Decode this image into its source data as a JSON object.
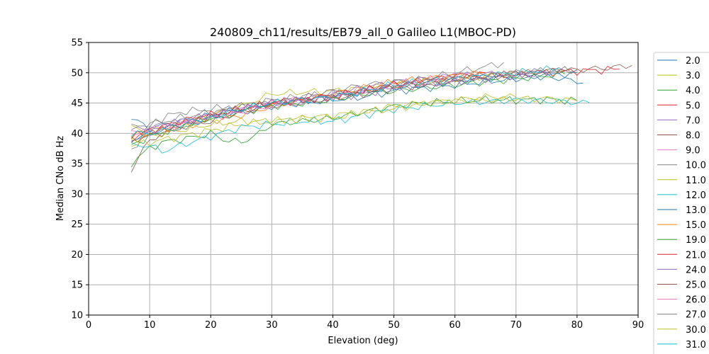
{
  "chart_data": {
    "type": "line",
    "title": "240809_ch11/results/EB79_all_0 Galileo L1(MBOC-PD)",
    "xlabel": "Elevation (deg)",
    "ylabel": "Median CNo dB Hz",
    "xlim": [
      0,
      90
    ],
    "ylim": [
      10,
      55
    ],
    "xticks": [
      "0",
      "10",
      "20",
      "30",
      "40",
      "50",
      "60",
      "70",
      "80",
      "90"
    ],
    "yticks": [
      "10",
      "15",
      "20",
      "25",
      "30",
      "35",
      "40",
      "45",
      "50",
      "55"
    ],
    "grid": true,
    "legend_position": "right, outside plot (clipped)",
    "series": [
      {
        "name": "2.0",
        "color": "#1f77b4",
        "x": [
          7,
          10,
          15,
          20,
          25,
          30,
          35,
          40,
          45,
          50,
          55,
          60,
          65,
          70,
          75,
          80,
          81
        ],
        "y": [
          42.5,
          40.8,
          42.0,
          43.0,
          44.0,
          45.0,
          45.5,
          46.0,
          46.8,
          47.5,
          48.0,
          48.5,
          49.0,
          49.3,
          49.5,
          48.5,
          48.3
        ]
      },
      {
        "name": "3.0",
        "color": "#bcbd22",
        "x": [
          7,
          10,
          15,
          20,
          25,
          30,
          35,
          40,
          45,
          50,
          55,
          60,
          65,
          70
        ],
        "y": [
          41.0,
          40.5,
          41.5,
          43.0,
          44.5,
          46.5,
          46.8,
          47.0,
          47.5,
          48.0,
          48.5,
          49.0,
          49.5,
          50.0
        ]
      },
      {
        "name": "4.0",
        "color": "#2ca02c",
        "x": [
          7,
          8,
          10,
          12,
          15,
          18,
          20,
          22,
          25,
          28,
          30,
          35,
          40,
          45,
          50,
          55,
          60,
          65,
          70,
          75,
          80
        ],
        "y": [
          35.0,
          36.0,
          37.5,
          38.5,
          39.0,
          39.5,
          40.0,
          39.0,
          38.5,
          40.0,
          41.5,
          42.0,
          42.5,
          43.5,
          44.5,
          45.0,
          45.3,
          45.5,
          45.5,
          45.6,
          45.4
        ]
      },
      {
        "name": "5.0",
        "color": "#d62728",
        "x": [
          7,
          10,
          15,
          20,
          25,
          30,
          35,
          40,
          45,
          50,
          55,
          60,
          65,
          70,
          75,
          80,
          85,
          87
        ],
        "y": [
          39.5,
          40.0,
          41.5,
          43.0,
          44.0,
          45.0,
          45.5,
          46.0,
          47.0,
          47.8,
          48.3,
          48.8,
          49.2,
          49.6,
          50.0,
          50.3,
          50.5,
          50.6
        ]
      },
      {
        "name": "7.0",
        "color": "#9467bd",
        "x": [
          7,
          10,
          15,
          20,
          25,
          30,
          35,
          40,
          45,
          50,
          55,
          60,
          65,
          70,
          75,
          78
        ],
        "y": [
          38.5,
          40.5,
          42.0,
          43.0,
          44.0,
          45.0,
          45.8,
          46.5,
          47.5,
          48.5,
          49.0,
          49.5,
          49.8,
          50.0,
          50.3,
          50.3
        ]
      },
      {
        "name": "8.0",
        "color": "#8c564b",
        "x": [
          7,
          10,
          15,
          20,
          25,
          30,
          35,
          40,
          45,
          50,
          55,
          60,
          65,
          70,
          75,
          80,
          85,
          89
        ],
        "y": [
          34.0,
          39.0,
          41.0,
          42.5,
          44.0,
          45.0,
          45.5,
          46.0,
          47.0,
          48.0,
          48.5,
          49.0,
          49.5,
          49.8,
          50.3,
          50.5,
          50.8,
          51.2
        ]
      },
      {
        "name": "9.0",
        "color": "#e377c2",
        "x": [
          7,
          10,
          15,
          20,
          25,
          30,
          35,
          40,
          45,
          50,
          55,
          60,
          63
        ],
        "y": [
          40.0,
          40.5,
          41.5,
          43.0,
          44.0,
          45.0,
          45.8,
          46.5,
          47.3,
          48.0,
          48.8,
          49.5,
          49.8
        ]
      },
      {
        "name": "10.0",
        "color": "#7f7f7f",
        "x": [
          7,
          10,
          12,
          15,
          20,
          25,
          30,
          35,
          40,
          45,
          50,
          55,
          60,
          65,
          68
        ],
        "y": [
          37.0,
          41.5,
          42.5,
          43.5,
          44.0,
          44.5,
          45.0,
          46.0,
          47.0,
          48.0,
          48.5,
          49.0,
          50.0,
          51.0,
          51.7
        ]
      },
      {
        "name": "11.0",
        "color": "#bcbd22",
        "x": [
          7,
          10,
          15,
          20,
          25,
          30,
          35,
          40,
          45,
          50,
          55,
          60,
          65,
          70,
          75,
          80
        ],
        "y": [
          38.0,
          38.5,
          39.5,
          40.5,
          41.5,
          42.0,
          42.5,
          43.0,
          43.5,
          44.5,
          45.0,
          45.3,
          45.5,
          45.7,
          45.8,
          45.4
        ]
      },
      {
        "name": "12.0",
        "color": "#17becf",
        "x": [
          7,
          10,
          12,
          15,
          20,
          25,
          30,
          35,
          40,
          45,
          50,
          55,
          60,
          65,
          70,
          75,
          80,
          82
        ],
        "y": [
          38.0,
          38.0,
          37.0,
          38.0,
          39.5,
          41.0,
          41.5,
          42.0,
          42.0,
          43.0,
          44.0,
          44.5,
          45.0,
          45.2,
          45.5,
          45.3,
          45.1,
          45.1
        ]
      },
      {
        "name": "13.0",
        "color": "#1f77b4",
        "x": [
          7,
          10,
          15,
          20,
          25,
          30,
          35,
          40,
          45,
          50,
          55,
          60,
          65,
          70,
          75,
          80
        ],
        "y": [
          39.0,
          40.0,
          41.5,
          42.5,
          43.5,
          44.5,
          45.0,
          45.5,
          46.0,
          47.0,
          47.5,
          48.0,
          48.5,
          49.0,
          49.5,
          50.0
        ]
      },
      {
        "name": "15.0",
        "color": "#ff7f0e",
        "x": [
          7,
          10,
          15,
          20,
          25,
          30,
          35,
          40,
          45,
          50,
          55,
          60,
          65
        ],
        "y": [
          39.5,
          40.0,
          41.0,
          42.0,
          43.0,
          44.5,
          45.5,
          46.5,
          47.5,
          48.5,
          49.0,
          49.5,
          50.0
        ]
      },
      {
        "name": "19.0",
        "color": "#2ca02c",
        "x": [
          7,
          10,
          15,
          20,
          25,
          30,
          35,
          40,
          45,
          50,
          55,
          60,
          65,
          70,
          75,
          78
        ],
        "y": [
          38.0,
          39.5,
          41.0,
          42.5,
          43.5,
          44.5,
          45.0,
          45.5,
          46.5,
          47.0,
          47.5,
          48.0,
          48.5,
          49.0,
          49.5,
          49.8
        ]
      },
      {
        "name": "21.0",
        "color": "#d62728",
        "x": [
          7,
          10,
          15,
          20,
          25,
          30,
          35,
          40,
          45,
          50,
          55,
          60,
          65
        ],
        "y": [
          39.0,
          40.5,
          42.0,
          43.0,
          44.0,
          45.0,
          45.5,
          46.3,
          47.0,
          48.0,
          48.8,
          49.5,
          50.0
        ]
      },
      {
        "name": "24.0",
        "color": "#9467bd",
        "x": [
          7,
          10,
          15,
          20,
          25,
          30,
          35,
          40,
          45,
          50,
          55,
          60,
          65,
          70,
          75
        ],
        "y": [
          40.5,
          41.0,
          42.0,
          43.0,
          44.0,
          45.0,
          45.5,
          46.0,
          46.5,
          47.5,
          48.0,
          48.5,
          49.0,
          49.5,
          50.0
        ]
      },
      {
        "name": "25.0",
        "color": "#8c564b",
        "x": [
          7,
          10,
          15,
          20,
          25,
          30,
          35,
          40,
          45,
          50,
          55,
          60,
          65,
          70,
          75,
          80
        ],
        "y": [
          39.0,
          39.5,
          41.0,
          42.0,
          43.5,
          44.5,
          45.0,
          45.8,
          46.5,
          47.5,
          48.0,
          48.8,
          49.3,
          49.8,
          50.3,
          50.5
        ]
      },
      {
        "name": "26.0",
        "color": "#e377c2",
        "x": [
          7,
          10,
          15,
          20,
          25,
          30,
          35,
          40,
          45,
          50,
          55,
          60
        ],
        "y": [
          40.0,
          40.0,
          41.5,
          42.5,
          43.5,
          44.5,
          45.5,
          46.0,
          47.0,
          48.0,
          48.5,
          49.0
        ]
      },
      {
        "name": "27.0",
        "color": "#7f7f7f",
        "x": [
          7,
          10,
          15,
          20,
          25,
          30,
          35,
          40,
          45,
          50,
          55,
          60,
          65,
          70,
          75,
          80
        ],
        "y": [
          41.0,
          41.5,
          42.5,
          43.5,
          44.5,
          45.5,
          46.0,
          46.5,
          47.0,
          48.0,
          48.5,
          49.0,
          49.5,
          50.0,
          50.3,
          50.5
        ]
      },
      {
        "name": "30.0",
        "color": "#bcbd22",
        "x": [
          7,
          10,
          15,
          20,
          25,
          30,
          35,
          40,
          45,
          50,
          55,
          60,
          65,
          70
        ],
        "y": [
          39.0,
          39.5,
          40.5,
          41.5,
          42.0,
          42.0,
          42.5,
          42.5,
          43.5,
          44.0,
          45.0,
          45.5,
          46.0,
          46.0
        ]
      },
      {
        "name": "31.0",
        "color": "#17becf",
        "x": [
          7,
          10,
          15,
          20,
          25,
          30,
          35,
          40,
          45,
          50,
          55,
          60,
          65,
          70,
          75,
          77
        ],
        "y": [
          40.0,
          40.0,
          41.0,
          42.5,
          44.0,
          45.0,
          45.5,
          46.0,
          47.0,
          48.0,
          48.5,
          49.0,
          49.5,
          50.0,
          50.5,
          50.8
        ]
      }
    ]
  }
}
